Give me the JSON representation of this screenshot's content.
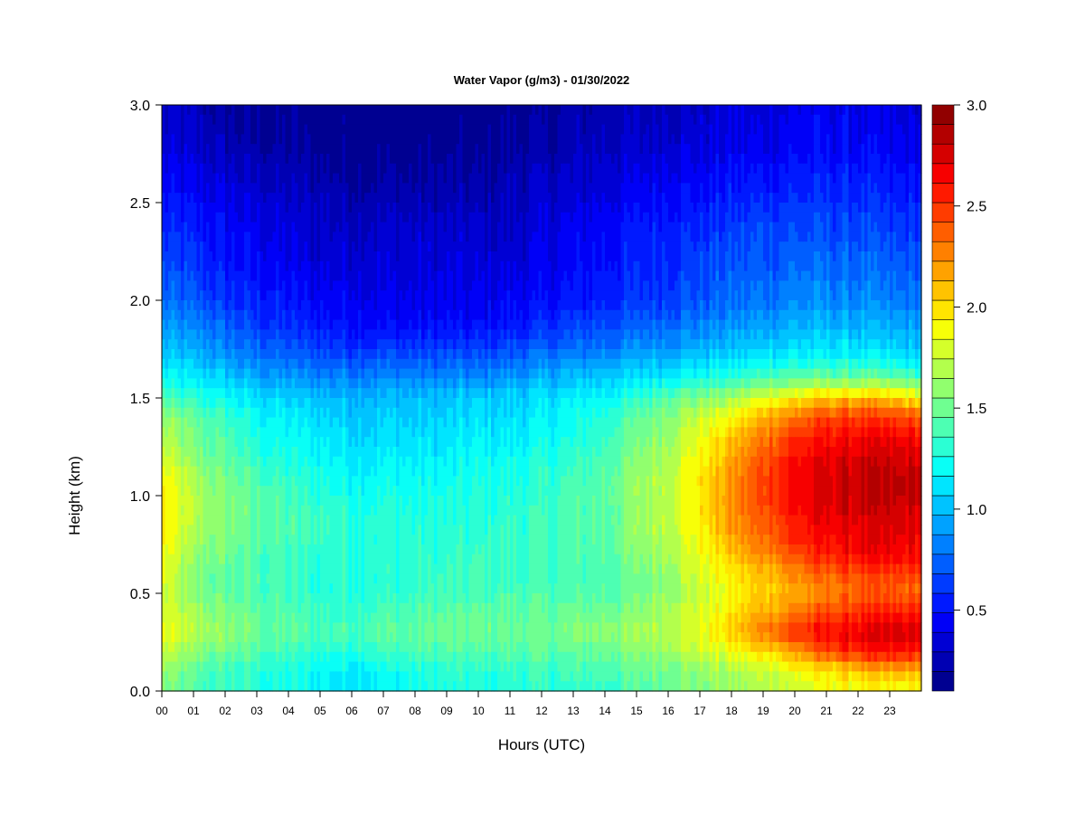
{
  "chart_data": {
    "type": "heatmap",
    "title": "Water Vapor (g/m3) - 01/30/2022",
    "xlabel": "Hours (UTC)",
    "ylabel": "Height (km)",
    "x_tick_labels": [
      "00",
      "01",
      "02",
      "03",
      "04",
      "05",
      "06",
      "07",
      "08",
      "09",
      "10",
      "11",
      "12",
      "13",
      "14",
      "15",
      "16",
      "17",
      "18",
      "19",
      "20",
      "21",
      "22",
      "23"
    ],
    "xlim": [
      0,
      24
    ],
    "y_ticks": [
      0.0,
      0.5,
      1.0,
      1.5,
      2.0,
      2.5,
      3.0
    ],
    "y_tick_labels": [
      "0.0",
      "0.5",
      "1.0",
      "1.5",
      "2.0",
      "2.5",
      "3.0"
    ],
    "ylim": [
      0,
      3.0
    ],
    "colorbar": {
      "min": 0.1,
      "max": 3.0,
      "levels": 30,
      "ticks": [
        0.5,
        1.0,
        1.5,
        2.0,
        2.5,
        3.0
      ],
      "tick_labels": [
        "0.5",
        "1.0",
        "1.5",
        "2.0",
        "2.5",
        "3.0"
      ],
      "colormap": "jet"
    },
    "x_hours": [
      0,
      1,
      2,
      3,
      4,
      5,
      6,
      7,
      8,
      9,
      10,
      11,
      12,
      13,
      14,
      15,
      16,
      17,
      18,
      19,
      20,
      21,
      22,
      23,
      24
    ],
    "y_heights": [
      0,
      0.1,
      0.2,
      0.3,
      0.4,
      0.5,
      0.6,
      0.7,
      0.8,
      0.9,
      1.0,
      1.1,
      1.2,
      1.3,
      1.4,
      1.5,
      1.6,
      1.7,
      1.8,
      1.9,
      2.0,
      2.2,
      2.4,
      2.6,
      2.8,
      3.0
    ],
    "values": [
      [
        1.55,
        1.4,
        1.35,
        1.3,
        1.25,
        1.2,
        1.15,
        1.2,
        1.25,
        1.25,
        1.25,
        1.3,
        1.3,
        1.3,
        1.35,
        1.4,
        1.5,
        1.55,
        1.6,
        1.7,
        1.75,
        1.85,
        1.85,
        1.85,
        1.85
      ],
      [
        1.6,
        1.45,
        1.35,
        1.3,
        1.25,
        1.2,
        1.15,
        1.2,
        1.25,
        1.3,
        1.3,
        1.3,
        1.35,
        1.35,
        1.4,
        1.45,
        1.55,
        1.6,
        1.65,
        1.75,
        1.85,
        1.95,
        2.1,
        2.1,
        2.1
      ],
      [
        1.75,
        1.55,
        1.5,
        1.4,
        1.35,
        1.3,
        1.3,
        1.35,
        1.4,
        1.4,
        1.4,
        1.45,
        1.45,
        1.45,
        1.5,
        1.55,
        1.65,
        1.75,
        1.85,
        2.0,
        2.2,
        2.45,
        2.55,
        2.6,
        2.6
      ],
      [
        1.85,
        1.7,
        1.6,
        1.5,
        1.45,
        1.4,
        1.4,
        1.45,
        1.45,
        1.5,
        1.5,
        1.5,
        1.5,
        1.55,
        1.6,
        1.65,
        1.75,
        1.85,
        2.05,
        2.3,
        2.5,
        2.65,
        2.7,
        2.75,
        2.75
      ],
      [
        1.8,
        1.65,
        1.55,
        1.45,
        1.4,
        1.35,
        1.35,
        1.4,
        1.4,
        1.45,
        1.45,
        1.45,
        1.45,
        1.5,
        1.5,
        1.55,
        1.7,
        1.8,
        1.95,
        2.15,
        2.3,
        2.45,
        2.5,
        2.55,
        2.55
      ],
      [
        1.8,
        1.55,
        1.45,
        1.4,
        1.35,
        1.3,
        1.3,
        1.3,
        1.35,
        1.35,
        1.35,
        1.4,
        1.4,
        1.4,
        1.45,
        1.5,
        1.65,
        1.75,
        1.9,
        2.05,
        2.15,
        2.25,
        2.35,
        2.35,
        2.35
      ],
      [
        1.85,
        1.55,
        1.45,
        1.4,
        1.35,
        1.3,
        1.3,
        1.3,
        1.3,
        1.35,
        1.35,
        1.35,
        1.35,
        1.4,
        1.4,
        1.5,
        1.65,
        1.8,
        1.95,
        2.1,
        2.25,
        2.35,
        2.45,
        2.45,
        2.45
      ],
      [
        1.9,
        1.6,
        1.5,
        1.4,
        1.35,
        1.3,
        1.3,
        1.3,
        1.3,
        1.3,
        1.35,
        1.35,
        1.35,
        1.4,
        1.45,
        1.55,
        1.7,
        1.85,
        2.05,
        2.25,
        2.45,
        2.55,
        2.65,
        2.65,
        2.65
      ],
      [
        1.95,
        1.65,
        1.55,
        1.45,
        1.4,
        1.35,
        1.3,
        1.3,
        1.3,
        1.3,
        1.3,
        1.35,
        1.35,
        1.4,
        1.45,
        1.6,
        1.75,
        1.9,
        2.15,
        2.35,
        2.55,
        2.65,
        2.7,
        2.7,
        2.7
      ],
      [
        1.95,
        1.7,
        1.55,
        1.45,
        1.4,
        1.35,
        1.3,
        1.3,
        1.25,
        1.25,
        1.3,
        1.3,
        1.35,
        1.4,
        1.45,
        1.6,
        1.75,
        1.95,
        2.2,
        2.4,
        2.6,
        2.7,
        2.75,
        2.75,
        2.75
      ],
      [
        1.95,
        1.7,
        1.55,
        1.45,
        1.35,
        1.3,
        1.25,
        1.25,
        1.25,
        1.25,
        1.25,
        1.3,
        1.3,
        1.4,
        1.45,
        1.6,
        1.75,
        1.95,
        2.25,
        2.45,
        2.65,
        2.75,
        2.8,
        2.8,
        2.8
      ],
      [
        1.9,
        1.65,
        1.5,
        1.4,
        1.3,
        1.25,
        1.2,
        1.2,
        1.2,
        1.2,
        1.25,
        1.25,
        1.3,
        1.35,
        1.45,
        1.6,
        1.75,
        1.95,
        2.2,
        2.45,
        2.65,
        2.75,
        2.8,
        2.8,
        2.8
      ],
      [
        1.8,
        1.55,
        1.45,
        1.3,
        1.25,
        1.2,
        1.15,
        1.15,
        1.15,
        1.15,
        1.2,
        1.2,
        1.25,
        1.3,
        1.4,
        1.55,
        1.7,
        1.9,
        2.15,
        2.4,
        2.6,
        2.7,
        2.75,
        2.75,
        2.75
      ],
      [
        1.7,
        1.5,
        1.4,
        1.25,
        1.2,
        1.15,
        1.1,
        1.1,
        1.1,
        1.1,
        1.15,
        1.15,
        1.2,
        1.25,
        1.35,
        1.5,
        1.65,
        1.85,
        2.05,
        2.3,
        2.5,
        2.6,
        2.65,
        2.65,
        2.65
      ],
      [
        1.6,
        1.45,
        1.35,
        1.2,
        1.15,
        1.1,
        1.05,
        1.05,
        1.05,
        1.05,
        1.1,
        1.1,
        1.15,
        1.2,
        1.3,
        1.45,
        1.6,
        1.75,
        1.9,
        2.15,
        2.3,
        2.45,
        2.5,
        2.45,
        2.4
      ],
      [
        1.4,
        1.3,
        1.2,
        1.1,
        1.05,
        1.0,
        1.0,
        1.0,
        1.0,
        1.0,
        1.05,
        1.05,
        1.1,
        1.15,
        1.2,
        1.3,
        1.45,
        1.55,
        1.65,
        1.8,
        1.95,
        2.05,
        2.1,
        2.05,
        1.95
      ],
      [
        1.2,
        1.15,
        1.05,
        0.95,
        0.9,
        0.85,
        0.85,
        0.85,
        0.85,
        0.85,
        0.85,
        0.9,
        0.95,
        1.0,
        1.05,
        1.1,
        1.2,
        1.25,
        1.3,
        1.4,
        1.45,
        1.5,
        1.5,
        1.45,
        1.4
      ],
      [
        1.05,
        1.0,
        0.9,
        0.8,
        0.75,
        0.7,
        0.7,
        0.7,
        0.7,
        0.7,
        0.7,
        0.75,
        0.8,
        0.85,
        0.9,
        0.95,
        1.0,
        1.05,
        1.1,
        1.15,
        1.2,
        1.2,
        1.2,
        1.15,
        1.1
      ],
      [
        0.95,
        0.9,
        0.8,
        0.7,
        0.65,
        0.6,
        0.55,
        0.55,
        0.55,
        0.55,
        0.55,
        0.6,
        0.65,
        0.7,
        0.75,
        0.8,
        0.85,
        0.9,
        0.95,
        1.0,
        1.05,
        1.05,
        1.05,
        1.0,
        1.0
      ],
      [
        0.85,
        0.8,
        0.7,
        0.6,
        0.55,
        0.5,
        0.5,
        0.45,
        0.45,
        0.45,
        0.45,
        0.5,
        0.55,
        0.6,
        0.65,
        0.7,
        0.75,
        0.8,
        0.85,
        0.9,
        0.95,
        0.95,
        0.95,
        0.9,
        0.9
      ],
      [
        0.75,
        0.7,
        0.6,
        0.55,
        0.5,
        0.45,
        0.45,
        0.4,
        0.4,
        0.4,
        0.4,
        0.45,
        0.45,
        0.5,
        0.55,
        0.6,
        0.65,
        0.7,
        0.75,
        0.8,
        0.85,
        0.85,
        0.85,
        0.8,
        0.8
      ],
      [
        0.65,
        0.6,
        0.5,
        0.45,
        0.4,
        0.35,
        0.35,
        0.35,
        0.35,
        0.35,
        0.35,
        0.35,
        0.4,
        0.45,
        0.5,
        0.55,
        0.6,
        0.65,
        0.7,
        0.7,
        0.75,
        0.75,
        0.75,
        0.7,
        0.7
      ],
      [
        0.55,
        0.5,
        0.45,
        0.4,
        0.35,
        0.3,
        0.3,
        0.3,
        0.3,
        0.3,
        0.3,
        0.3,
        0.35,
        0.4,
        0.45,
        0.5,
        0.55,
        0.55,
        0.6,
        0.65,
        0.65,
        0.65,
        0.65,
        0.6,
        0.6
      ],
      [
        0.45,
        0.4,
        0.35,
        0.3,
        0.25,
        0.25,
        0.2,
        0.2,
        0.2,
        0.2,
        0.2,
        0.25,
        0.3,
        0.3,
        0.35,
        0.4,
        0.45,
        0.45,
        0.5,
        0.5,
        0.55,
        0.55,
        0.55,
        0.5,
        0.5
      ],
      [
        0.35,
        0.3,
        0.25,
        0.2,
        0.2,
        0.15,
        0.15,
        0.15,
        0.15,
        0.15,
        0.15,
        0.2,
        0.2,
        0.25,
        0.3,
        0.3,
        0.35,
        0.35,
        0.4,
        0.4,
        0.45,
        0.45,
        0.45,
        0.4,
        0.4
      ],
      [
        0.3,
        0.25,
        0.2,
        0.15,
        0.15,
        0.15,
        0.1,
        0.1,
        0.1,
        0.1,
        0.1,
        0.15,
        0.15,
        0.2,
        0.25,
        0.25,
        0.3,
        0.3,
        0.35,
        0.35,
        0.4,
        0.4,
        0.4,
        0.35,
        0.35
      ]
    ]
  }
}
